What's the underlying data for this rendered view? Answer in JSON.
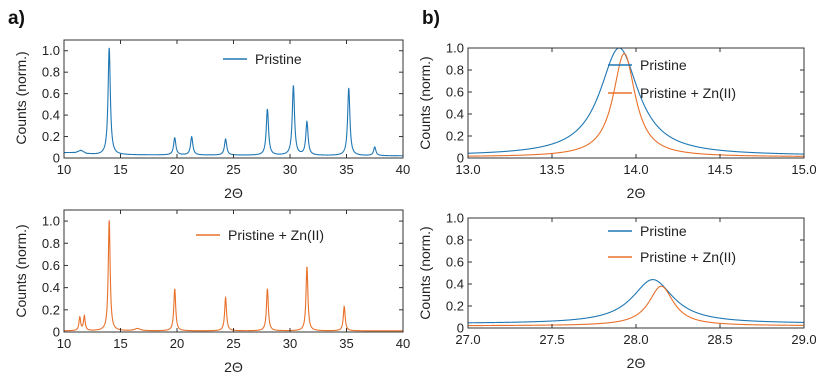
{
  "panels": {
    "a": "a)",
    "b": "b)"
  },
  "colors": {
    "pristine": "#1f77b4",
    "zn": "#e8702a"
  },
  "chart_data": [
    {
      "id": "a-top",
      "type": "line",
      "xlabel": "2Θ",
      "ylabel": "Counts (norm.)",
      "xlim": [
        10,
        40
      ],
      "ylim": [
        0,
        1.1
      ],
      "xticks": [
        10,
        15,
        20,
        25,
        30,
        35,
        40
      ],
      "yticks": [
        0,
        0.2,
        0.4,
        0.6,
        0.8,
        1.0
      ],
      "legend": "top-right",
      "series": [
        {
          "name": "Pristine",
          "color": "#1f77b4",
          "baseline": 0.02,
          "shoulder": [
            [
              10,
              0.05
            ],
            [
              11,
              0.05
            ],
            [
              11.5,
              0.07
            ],
            [
              12,
              0.04
            ],
            [
              13,
              0.03
            ],
            [
              40,
              0.02
            ]
          ],
          "peaks": [
            [
              14.0,
              1.0,
              0.12
            ],
            [
              19.8,
              0.16,
              0.12
            ],
            [
              21.3,
              0.17,
              0.12
            ],
            [
              24.3,
              0.15,
              0.12
            ],
            [
              28.0,
              0.43,
              0.12
            ],
            [
              30.3,
              0.65,
              0.12
            ],
            [
              31.5,
              0.31,
              0.12
            ],
            [
              35.2,
              0.63,
              0.12
            ],
            [
              37.5,
              0.08,
              0.12
            ]
          ]
        }
      ]
    },
    {
      "id": "a-bottom",
      "type": "line",
      "xlabel": "2Θ",
      "ylabel": "Counts (norm.)",
      "xlim": [
        10,
        40
      ],
      "ylim": [
        0,
        1.1
      ],
      "xticks": [
        10,
        15,
        20,
        25,
        30,
        35,
        40
      ],
      "yticks": [
        0,
        0.2,
        0.4,
        0.6,
        0.8,
        1.0
      ],
      "legend": "top-right",
      "series": [
        {
          "name": "Pristine + Zn(II)",
          "color": "#e8702a",
          "baseline": 0.01,
          "shoulder": [
            [
              10,
              0.01
            ],
            [
              40,
              0.01
            ]
          ],
          "peaks": [
            [
              11.4,
              0.12,
              0.09
            ],
            [
              11.8,
              0.13,
              0.09
            ],
            [
              14.0,
              1.0,
              0.1
            ],
            [
              16.5,
              0.02,
              0.3
            ],
            [
              19.8,
              0.38,
              0.1
            ],
            [
              24.3,
              0.3,
              0.1
            ],
            [
              28.0,
              0.38,
              0.1
            ],
            [
              31.5,
              0.58,
              0.1
            ],
            [
              34.8,
              0.22,
              0.1
            ]
          ]
        }
      ]
    },
    {
      "id": "b-top",
      "type": "line",
      "xlabel": "2Θ",
      "ylabel": "Counts (norm.)",
      "xlim": [
        13.0,
        15.0
      ],
      "ylim": [
        0,
        1.0
      ],
      "xticks": [
        13.0,
        13.5,
        14.0,
        14.5,
        15.0
      ],
      "yticks": [
        0,
        0.2,
        0.4,
        0.6,
        0.8,
        1.0
      ],
      "legend": "top-right",
      "series": [
        {
          "name": "Pristine",
          "color": "#1f77b4",
          "baseline": 0.02,
          "shoulder": [],
          "peaks": [
            [
              13.9,
              0.98,
              0.14
            ]
          ]
        },
        {
          "name": "Pristine + Zn(II)",
          "color": "#e8702a",
          "baseline": 0.01,
          "shoulder": [],
          "peaks": [
            [
              13.93,
              0.94,
              0.08
            ]
          ]
        }
      ]
    },
    {
      "id": "b-bottom",
      "type": "line",
      "xlabel": "2Θ",
      "ylabel": "Counts (norm.)",
      "xlim": [
        27.0,
        29.0
      ],
      "ylim": [
        0,
        1.0
      ],
      "xticks": [
        27.0,
        27.5,
        28.0,
        28.5,
        29.0
      ],
      "yticks": [
        0,
        0.2,
        0.4,
        0.6,
        0.8,
        1.0
      ],
      "legend": "top-right",
      "series": [
        {
          "name": "Pristine",
          "color": "#1f77b4",
          "baseline": 0.04,
          "shoulder": [],
          "peaks": [
            [
              28.1,
              0.4,
              0.15
            ]
          ]
        },
        {
          "name": "Pristine + Zn(II)",
          "color": "#e8702a",
          "baseline": 0.02,
          "shoulder": [],
          "peaks": [
            [
              28.15,
              0.36,
              0.09
            ]
          ]
        }
      ]
    }
  ]
}
